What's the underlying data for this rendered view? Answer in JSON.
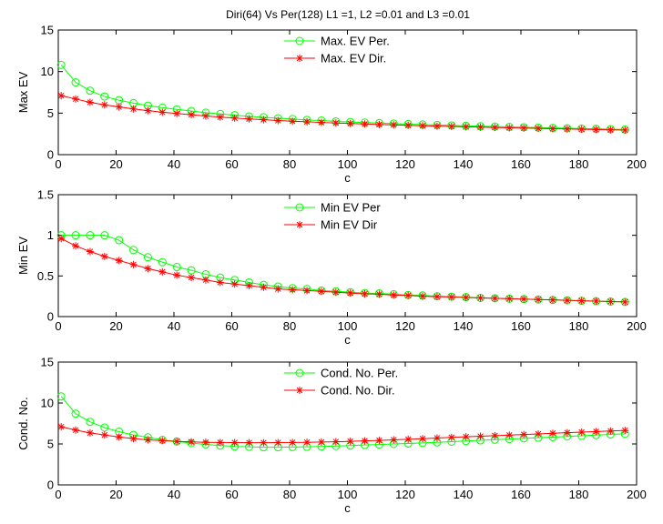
{
  "figure_title": "Diri(64) Vs Per(128) L1 =1, L2 =0.01 and L3 =0.01",
  "colors": {
    "per": "#00ff00",
    "dir": "#ff0000",
    "axis": "#000000",
    "legend_border": "#ffffff"
  },
  "chart_data": [
    {
      "type": "line",
      "title": "Diri(64) Vs Per(128) L1 =1, L2 =0.01 and L3 =0.01",
      "xlabel": "c",
      "ylabel": "Max EV",
      "xlim": [
        0,
        200
      ],
      "ylim": [
        0,
        15
      ],
      "xticks": [
        0,
        20,
        40,
        60,
        80,
        100,
        120,
        140,
        160,
        180,
        200
      ],
      "yticks": [
        0,
        5,
        10,
        15
      ],
      "legend_position": "top-center",
      "x": [
        1,
        6,
        11,
        16,
        21,
        26,
        31,
        36,
        41,
        46,
        51,
        56,
        61,
        66,
        71,
        76,
        81,
        86,
        91,
        96,
        101,
        106,
        111,
        116,
        121,
        126,
        131,
        136,
        141,
        146,
        151,
        156,
        161,
        166,
        171,
        176,
        181,
        186,
        191,
        196
      ],
      "series": [
        {
          "name": "Max. EV Per.",
          "color": "#00ff00",
          "marker": "circle",
          "values": [
            10.8,
            8.7,
            7.7,
            7.0,
            6.55,
            6.2,
            5.9,
            5.65,
            5.45,
            5.25,
            5.05,
            4.9,
            4.75,
            4.6,
            4.5,
            4.38,
            4.28,
            4.18,
            4.1,
            4.0,
            3.93,
            3.86,
            3.8,
            3.74,
            3.68,
            3.62,
            3.57,
            3.52,
            3.47,
            3.42,
            3.38,
            3.34,
            3.3,
            3.26,
            3.22,
            3.18,
            3.14,
            3.1,
            3.06,
            3.02
          ]
        },
        {
          "name": "Max. EV Dir.",
          "color": "#ff0000",
          "marker": "star",
          "values": [
            7.1,
            6.7,
            6.3,
            6.0,
            5.75,
            5.5,
            5.3,
            5.1,
            4.95,
            4.8,
            4.65,
            4.52,
            4.4,
            4.3,
            4.2,
            4.1,
            4.02,
            3.95,
            3.88,
            3.81,
            3.75,
            3.69,
            3.63,
            3.58,
            3.53,
            3.48,
            3.43,
            3.39,
            3.35,
            3.31,
            3.27,
            3.23,
            3.2,
            3.16,
            3.12,
            3.09,
            3.05,
            3.02,
            2.99,
            2.96
          ]
        }
      ]
    },
    {
      "type": "line",
      "xlabel": "c",
      "ylabel": "Min EV",
      "xlim": [
        0,
        200
      ],
      "ylim": [
        0,
        1.5
      ],
      "xticks": [
        0,
        20,
        40,
        60,
        80,
        100,
        120,
        140,
        160,
        180,
        200
      ],
      "yticks": [
        0,
        0.5,
        1,
        1.5
      ],
      "legend_position": "top-center",
      "x": [
        1,
        6,
        11,
        16,
        21,
        26,
        31,
        36,
        41,
        46,
        51,
        56,
        61,
        66,
        71,
        76,
        81,
        86,
        91,
        96,
        101,
        106,
        111,
        116,
        121,
        126,
        131,
        136,
        141,
        146,
        151,
        156,
        161,
        166,
        171,
        176,
        181,
        186,
        191,
        196
      ],
      "series": [
        {
          "name": "Min EV Per",
          "color": "#00ff00",
          "marker": "circle",
          "values": [
            1.0,
            1.0,
            1.0,
            1.0,
            0.94,
            0.82,
            0.73,
            0.67,
            0.61,
            0.57,
            0.52,
            0.48,
            0.45,
            0.42,
            0.39,
            0.37,
            0.35,
            0.34,
            0.32,
            0.31,
            0.3,
            0.29,
            0.285,
            0.275,
            0.265,
            0.26,
            0.25,
            0.245,
            0.24,
            0.23,
            0.225,
            0.22,
            0.215,
            0.21,
            0.205,
            0.2,
            0.195,
            0.19,
            0.185,
            0.18
          ]
        },
        {
          "name": "Min EV Dir",
          "color": "#ff0000",
          "marker": "star",
          "values": [
            0.96,
            0.87,
            0.8,
            0.74,
            0.69,
            0.64,
            0.59,
            0.55,
            0.51,
            0.48,
            0.45,
            0.42,
            0.4,
            0.38,
            0.36,
            0.34,
            0.33,
            0.32,
            0.31,
            0.3,
            0.29,
            0.28,
            0.275,
            0.265,
            0.26,
            0.25,
            0.245,
            0.24,
            0.235,
            0.23,
            0.225,
            0.22,
            0.215,
            0.21,
            0.205,
            0.2,
            0.195,
            0.19,
            0.185,
            0.18
          ]
        }
      ]
    },
    {
      "type": "line",
      "xlabel": "c",
      "ylabel": "Cond. No.",
      "xlim": [
        0,
        200
      ],
      "ylim": [
        0,
        15
      ],
      "xticks": [
        0,
        20,
        40,
        60,
        80,
        100,
        120,
        140,
        160,
        180,
        200
      ],
      "yticks": [
        0,
        5,
        10,
        15
      ],
      "legend_position": "top-center",
      "x": [
        1,
        6,
        11,
        16,
        21,
        26,
        31,
        36,
        41,
        46,
        51,
        56,
        61,
        66,
        71,
        76,
        81,
        86,
        91,
        96,
        101,
        106,
        111,
        116,
        121,
        126,
        131,
        136,
        141,
        146,
        151,
        156,
        161,
        166,
        171,
        176,
        181,
        186,
        191,
        196
      ],
      "series": [
        {
          "name": "Cond. No. Per.",
          "color": "#00ff00",
          "marker": "circle",
          "values": [
            10.8,
            8.7,
            7.7,
            7.0,
            6.5,
            6.1,
            5.8,
            5.5,
            5.3,
            5.1,
            4.95,
            4.8,
            4.7,
            4.65,
            4.6,
            4.6,
            4.62,
            4.65,
            4.7,
            4.75,
            4.8,
            4.87,
            4.93,
            5.0,
            5.06,
            5.12,
            5.2,
            5.28,
            5.36,
            5.44,
            5.52,
            5.6,
            5.68,
            5.76,
            5.84,
            5.92,
            6.0,
            6.08,
            6.16,
            6.24
          ]
        },
        {
          "name": "Cond. No. Dir.",
          "color": "#ff0000",
          "marker": "star",
          "values": [
            7.1,
            6.7,
            6.35,
            6.1,
            5.85,
            5.65,
            5.5,
            5.4,
            5.3,
            5.25,
            5.2,
            5.18,
            5.16,
            5.15,
            5.15,
            5.16,
            5.18,
            5.2,
            5.23,
            5.27,
            5.32,
            5.37,
            5.43,
            5.5,
            5.57,
            5.64,
            5.72,
            5.8,
            5.87,
            5.94,
            6.01,
            6.08,
            6.15,
            6.22,
            6.3,
            6.37,
            6.44,
            6.51,
            6.58,
            6.65
          ]
        }
      ]
    }
  ]
}
